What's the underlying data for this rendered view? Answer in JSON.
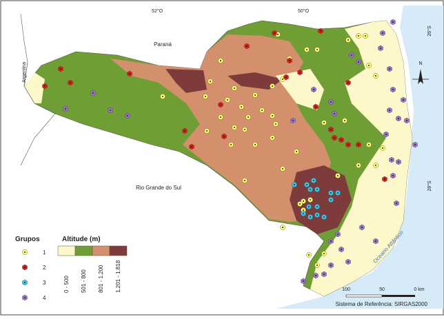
{
  "map": {
    "graticule": {
      "lon": [
        "52°O",
        "50°O"
      ],
      "lat": [
        "26°S",
        "28°S"
      ]
    },
    "places": {
      "parana": "Paraná",
      "argentina": "Argentina",
      "rs": "Rio Grande do Sul",
      "ocean": "Oceano Atlântico"
    },
    "north": "N",
    "legend": {
      "groups_title": "Grupos",
      "groups": [
        "1",
        "2",
        "3",
        "4"
      ],
      "altitude_title": "Altitude (m)",
      "altitude": [
        "0 - 500",
        "501 - 800",
        "801 - 1.200",
        "1.201 - 1.818"
      ]
    },
    "scale": [
      "100",
      "50",
      "0 km"
    ],
    "reference": "Sistema de Referência: SIRGAS2000"
  }
}
